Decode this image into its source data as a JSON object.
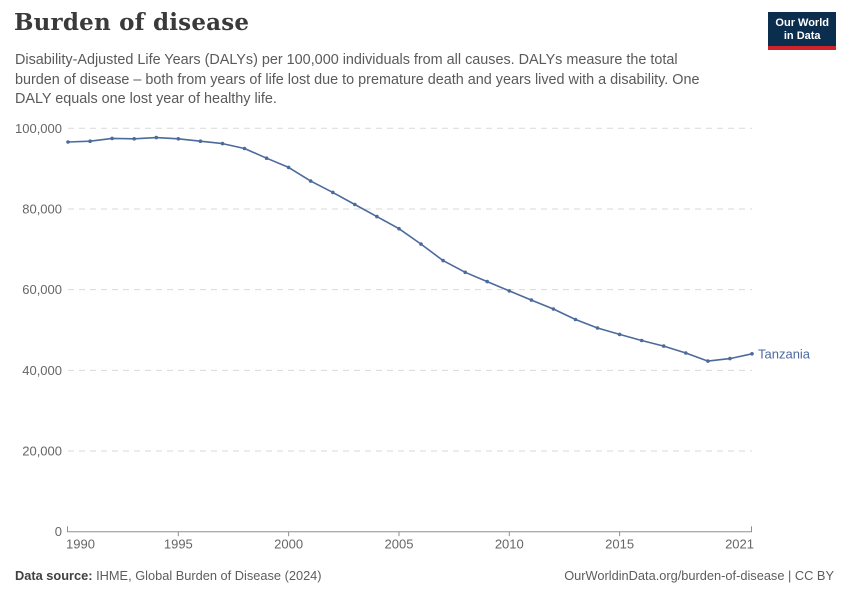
{
  "header": {
    "title": "Burden of disease",
    "logo": {
      "line1": "Our World",
      "line2": "in Data",
      "bg_color": "#0C2E4E",
      "accent_color": "#D02429"
    }
  },
  "subtitle": {
    "lines": [
      "Disability-Adjusted Life Years (DALYs) per 100,000 individuals from all causes. DALYs measure the total",
      "burden of disease – both from years of life lost due to premature death and years lived with a disability. One",
      "DALY equals one lost year of healthy life."
    ]
  },
  "chart_data": {
    "type": "line",
    "title": "Burden of disease",
    "x": [
      1990,
      1991,
      1992,
      1993,
      1994,
      1995,
      1996,
      1997,
      1998,
      1999,
      2000,
      2001,
      2002,
      2003,
      2004,
      2005,
      2006,
      2007,
      2008,
      2009,
      2010,
      2011,
      2012,
      2013,
      2014,
      2015,
      2016,
      2017,
      2018,
      2019,
      2020,
      2021
    ],
    "series": [
      {
        "name": "Tanzania",
        "values": [
          96600,
          96800,
          97500,
          97400,
          97700,
          97400,
          96800,
          96200,
          95000,
          92600,
          90300,
          86900,
          84100,
          81100,
          78100,
          75100,
          71300,
          67200,
          64300,
          62000,
          59700,
          57400,
          55200,
          52600,
          50500,
          48900,
          47400,
          46000,
          44300,
          42300,
          42900,
          44100
        ],
        "color": "#4C6A9C"
      }
    ],
    "entity_label": "Tanzania",
    "xlim": [
      1990,
      2021
    ],
    "ylim": [
      0,
      100000
    ],
    "xticks": [
      1990,
      1995,
      2000,
      2005,
      2010,
      2015,
      2021
    ],
    "yticks": [
      0,
      20000,
      40000,
      60000,
      80000,
      100000
    ],
    "grid": "horizontal-dashed",
    "grid_color": "#d9d9d9",
    "axis_color": "#8f8f8f",
    "axis_text_color": "#666666",
    "legend_position": "end-of-line"
  },
  "footer": {
    "source_label": "Data source:",
    "source_text": " IHME, Global Burden of Disease (2024)",
    "credit": "OurWorldinData.org/burden-of-disease | CC BY"
  }
}
